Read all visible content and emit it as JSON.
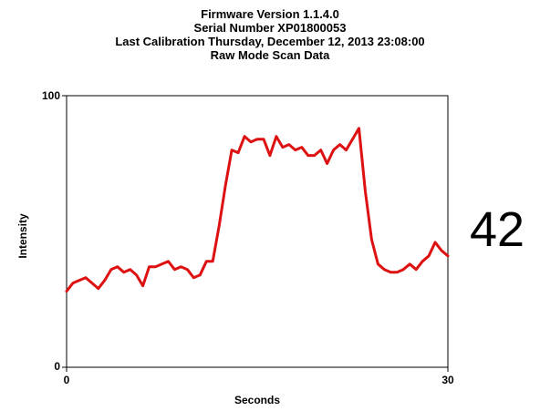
{
  "header": {
    "line1": "Firmware Version 1.1.4.0",
    "line2": "Serial Number XP01800053",
    "line3": "Last Calibration Thursday, December 12, 2013 23:08:00",
    "line4": "Raw Mode Scan Data"
  },
  "readout": {
    "value": "42"
  },
  "chart_data": {
    "type": "line",
    "title": "Raw Mode Scan Data",
    "xlabel": "Seconds",
    "ylabel": "Intensity",
    "xlim": [
      0,
      30
    ],
    "ylim": [
      0,
      100
    ],
    "x_ticks": [
      "0",
      "30"
    ],
    "y_ticks": [
      "0",
      "100"
    ],
    "grid": false,
    "line_color": "#dd1111",
    "series": [
      {
        "x": [
          0,
          0.5,
          1,
          1.5,
          2,
          2.5,
          3,
          3.5,
          4,
          4.5,
          5,
          5.5,
          6,
          6.5,
          7,
          7.5,
          8,
          8.5,
          9,
          9.5,
          10,
          10.5,
          11,
          11.5,
          12,
          12.5,
          13,
          13.5,
          14,
          14.5,
          15,
          15.5,
          16,
          16.5,
          17,
          17.5,
          18,
          18.5,
          19,
          19.5,
          20,
          20.5,
          21,
          21.5,
          22,
          22.5,
          23,
          23.5,
          24,
          24.5,
          25,
          25.5,
          26,
          26.5,
          27,
          27.5,
          28,
          28.5,
          29,
          29.5,
          30
        ],
        "values": [
          28,
          31,
          32,
          33,
          31,
          29,
          32,
          36,
          37,
          35,
          36,
          34,
          30,
          37,
          37,
          38,
          39,
          36,
          37,
          36,
          33,
          34,
          39,
          39,
          52,
          67,
          80,
          79,
          85,
          83,
          84,
          84,
          78,
          85,
          81,
          82,
          80,
          81,
          78,
          78,
          80,
          75,
          80,
          82,
          80,
          84,
          88,
          65,
          47,
          38,
          36,
          35,
          35,
          36,
          38,
          36,
          39,
          41,
          46,
          43,
          41
        ]
      }
    ]
  }
}
